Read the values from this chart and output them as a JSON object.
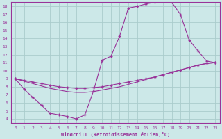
{
  "xlabel": "Windchill (Refroidissement éolien,°C)",
  "bg_color": "#cce8e8",
  "grid_color": "#aacccc",
  "line_color": "#993399",
  "xlim": [
    -0.5,
    23.5
  ],
  "ylim": [
    3.5,
    18.5
  ],
  "xticks": [
    0,
    1,
    2,
    3,
    4,
    5,
    6,
    7,
    8,
    9,
    10,
    11,
    12,
    13,
    14,
    15,
    16,
    17,
    18,
    19,
    20,
    21,
    22,
    23
  ],
  "yticks": [
    4,
    5,
    6,
    7,
    8,
    9,
    10,
    11,
    12,
    13,
    14,
    15,
    16,
    17,
    18
  ],
  "line1_x": [
    0,
    1,
    2,
    3,
    4,
    5,
    6,
    7,
    8,
    9,
    10,
    11,
    12,
    13,
    14,
    15,
    16,
    17,
    18,
    19,
    20,
    21,
    22,
    23
  ],
  "line1_y": [
    9.0,
    7.7,
    6.7,
    5.7,
    4.7,
    4.5,
    4.3,
    4.0,
    4.5,
    7.5,
    11.3,
    11.8,
    14.3,
    17.8,
    18.0,
    18.3,
    18.5,
    18.7,
    18.5,
    17.0,
    13.8,
    12.5,
    11.2,
    11.0
  ],
  "line2_x": [
    0,
    1,
    2,
    3,
    4,
    5,
    6,
    7,
    8,
    9,
    10,
    11,
    12,
    13,
    14,
    15,
    16,
    17,
    18,
    19,
    20,
    21,
    22,
    23
  ],
  "line2_y": [
    9.0,
    8.8,
    8.6,
    8.4,
    8.2,
    8.0,
    7.9,
    7.8,
    7.8,
    7.9,
    8.0,
    8.2,
    8.4,
    8.6,
    8.8,
    9.0,
    9.2,
    9.5,
    9.8,
    10.1,
    10.4,
    10.7,
    10.9,
    11.0
  ],
  "line3_x": [
    0,
    1,
    2,
    3,
    4,
    5,
    6,
    7,
    8,
    9,
    10,
    11,
    12,
    13,
    14,
    15,
    16,
    17,
    18,
    19,
    20,
    21,
    22,
    23
  ],
  "line3_y": [
    9.0,
    8.7,
    8.4,
    8.1,
    7.8,
    7.6,
    7.4,
    7.3,
    7.3,
    7.4,
    7.6,
    7.8,
    8.0,
    8.3,
    8.6,
    8.9,
    9.2,
    9.5,
    9.8,
    10.1,
    10.4,
    10.7,
    10.9,
    11.0
  ]
}
